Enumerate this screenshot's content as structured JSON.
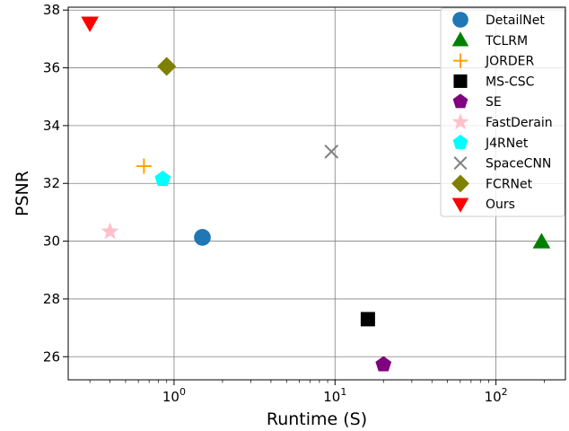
{
  "chart_data": {
    "type": "scatter",
    "xlabel": "Runtime (S)",
    "ylabel": "PSNR",
    "xscale": "log",
    "xlim": [
      0.22,
      270
    ],
    "ylim": [
      25.2,
      38.1
    ],
    "grid": true,
    "legend_position": "top-right",
    "x_ticks": [
      {
        "value": 1,
        "base": "10",
        "exp": "0"
      },
      {
        "value": 10,
        "base": "10",
        "exp": "1"
      },
      {
        "value": 100,
        "base": "10",
        "exp": "2"
      }
    ],
    "y_ticks": [
      "26",
      "28",
      "30",
      "32",
      "34",
      "36",
      "38"
    ],
    "series": [
      {
        "name": "DetailNet",
        "marker": "circle",
        "color": "#1f77b4",
        "x": 1.5,
        "y": 30.13
      },
      {
        "name": "TCLRM",
        "marker": "triangle-up",
        "color": "#008000",
        "x": 192,
        "y": 29.97
      },
      {
        "name": "JORDER",
        "marker": "plus",
        "color": "#ffa500",
        "x": 0.65,
        "y": 32.6
      },
      {
        "name": "MS-CSC",
        "marker": "square",
        "color": "#000000",
        "x": 16,
        "y": 27.3
      },
      {
        "name": "SE",
        "marker": "pentagon",
        "color": "#800080",
        "x": 20,
        "y": 25.73
      },
      {
        "name": "FastDerain",
        "marker": "star",
        "color": "#ffc0cb",
        "x": 0.4,
        "y": 30.33
      },
      {
        "name": "J4RNet",
        "marker": "pentagon",
        "color": "#00ffff",
        "x": 0.85,
        "y": 32.15
      },
      {
        "name": "SpaceCNN",
        "marker": "x",
        "color": "#808080",
        "x": 9.5,
        "y": 33.1
      },
      {
        "name": "FCRNet",
        "marker": "diamond",
        "color": "#808000",
        "x": 0.9,
        "y": 36.05
      },
      {
        "name": "Ours",
        "marker": "triangle-down",
        "color": "#ff0000",
        "x": 0.3,
        "y": 37.55
      }
    ]
  }
}
